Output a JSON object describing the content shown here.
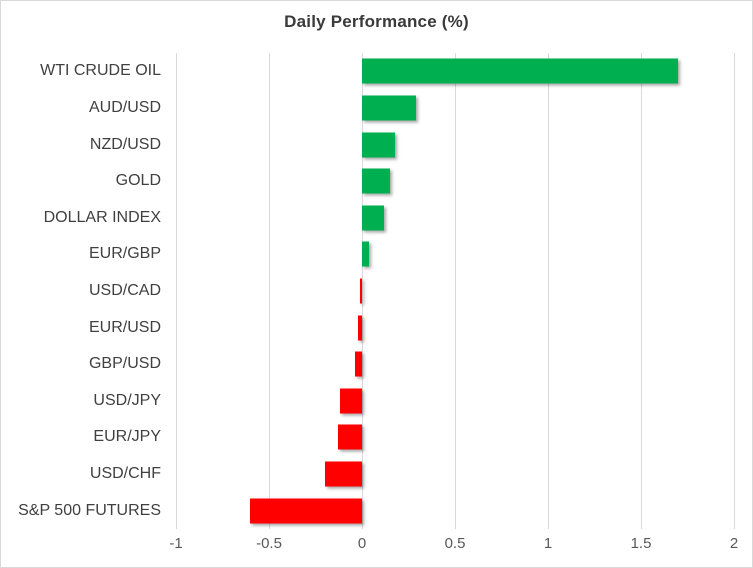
{
  "window": {
    "background_color": "#FFFFFF",
    "border_color": "#D9D9D9"
  },
  "chart_data": {
    "type": "bar",
    "orientation": "horizontal",
    "title": "Daily Performance (%)",
    "xlabel": "",
    "ylabel": "",
    "categories": [
      "WTI CRUDE OIL",
      "AUD/USD",
      "NZD/USD",
      "GOLD",
      "DOLLAR INDEX",
      "EUR/GBP",
      "USD/CAD",
      "EUR/USD",
      "GBP/USD",
      "USD/JPY",
      "EUR/JPY",
      "USD/CHF",
      "S&P 500 FUTURES"
    ],
    "values": [
      1.7,
      0.29,
      0.18,
      0.15,
      0.12,
      0.04,
      -0.01,
      -0.02,
      -0.04,
      -0.12,
      -0.13,
      -0.2,
      -0.6
    ],
    "xlim": [
      -1,
      2
    ],
    "x_ticks": [
      {
        "value": -1,
        "label": "-1"
      },
      {
        "value": -0.5,
        "label": "-0.5"
      },
      {
        "value": 0,
        "label": "0"
      },
      {
        "value": 0.5,
        "label": "0.5"
      },
      {
        "value": 1,
        "label": "1"
      },
      {
        "value": 1.5,
        "label": "1.5"
      },
      {
        "value": 2,
        "label": "2"
      }
    ],
    "grid": "vertical",
    "legend_position": "none",
    "colors": {
      "positive_bar": "#00B050",
      "negative_bar": "#FF0000",
      "gridline": "#D9D9D9",
      "title_text": "#3A3A3A",
      "category_text": "#404040",
      "tick_text": "#595959"
    }
  }
}
